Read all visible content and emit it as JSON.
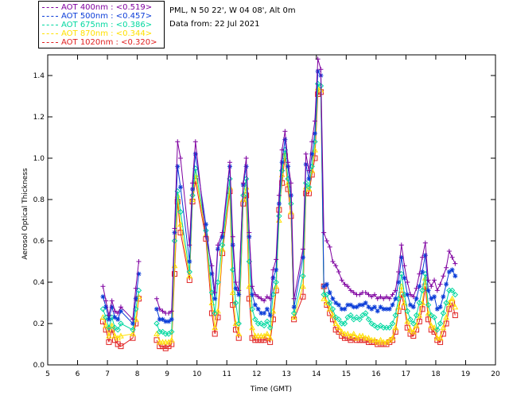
{
  "header": {
    "location": "PML, N 50 22', W 04 08', Alt 0m",
    "date": "Data from: 22 Jul 2021"
  },
  "legend": [
    {
      "label": "AOT  400nm : <0.519>",
      "color": "#7f00a0"
    },
    {
      "label": "AOT  500nm : <0.457>",
      "color": "#0a3cd8"
    },
    {
      "label": "AOT  675nm : <0.386>",
      "color": "#00d8a0"
    },
    {
      "label": "AOT  870nm : <0.344>",
      "color": "#ffe000"
    },
    {
      "label": "AOT 1020nm : <0.320>",
      "color": "#e02020"
    }
  ],
  "chart_data": {
    "type": "line",
    "xlabel": "Time (GMT)",
    "ylabel": "Aerosol Optical Thickness",
    "xlim": [
      5,
      20
    ],
    "ylim": [
      0.0,
      1.5
    ],
    "xticks": [
      5,
      6,
      7,
      8,
      9,
      10,
      11,
      12,
      13,
      14,
      15,
      16,
      17,
      18,
      19,
      20
    ],
    "yticks": [
      "0.0",
      "0.2",
      "0.4",
      "0.6",
      "0.8",
      "1.0",
      "1.2",
      "1.4"
    ],
    "x": [
      6.85,
      6.95,
      7.05,
      7.15,
      7.25,
      7.35,
      7.45,
      7.85,
      7.95,
      8.05,
      8.65,
      8.75,
      8.85,
      8.95,
      9.05,
      9.15,
      9.25,
      9.35,
      9.45,
      9.75,
      9.85,
      9.95,
      10.3,
      10.5,
      10.6,
      10.7,
      10.85,
      11.1,
      11.2,
      11.3,
      11.4,
      11.55,
      11.65,
      11.75,
      11.85,
      11.95,
      12.05,
      12.15,
      12.25,
      12.35,
      12.45,
      12.55,
      12.65,
      12.75,
      12.85,
      12.95,
      13.05,
      13.15,
      13.25,
      13.55,
      13.65,
      13.75,
      13.85,
      13.95,
      14.05,
      14.15,
      14.25,
      14.35,
      14.45,
      14.55,
      14.65,
      14.75,
      14.85,
      14.95,
      15.05,
      15.15,
      15.25,
      15.35,
      15.45,
      15.55,
      15.65,
      15.75,
      15.85,
      15.95,
      16.05,
      16.15,
      16.25,
      16.35,
      16.45,
      16.55,
      16.65,
      16.75,
      16.85,
      16.95,
      17.05,
      17.15,
      17.25,
      17.35,
      17.45,
      17.55,
      17.65,
      17.75,
      17.85,
      17.95,
      18.05,
      18.15,
      18.25,
      18.35,
      18.45,
      18.55,
      18.65
    ],
    "series": [
      {
        "name": "AOT  400nm",
        "color": "#7f00a0",
        "values": [
          0.38,
          0.31,
          0.24,
          0.31,
          0.26,
          0.25,
          0.28,
          0.22,
          0.37,
          0.5,
          0.32,
          0.27,
          0.26,
          0.25,
          0.25,
          0.26,
          0.66,
          1.08,
          1.0,
          0.58,
          0.88,
          1.08,
          0.62,
          0.48,
          0.35,
          0.58,
          0.64,
          0.98,
          0.62,
          0.4,
          0.36,
          0.88,
          1.0,
          0.64,
          0.38,
          0.34,
          0.33,
          0.32,
          0.31,
          0.33,
          0.32,
          0.46,
          0.51,
          0.82,
          1.04,
          1.13,
          0.98,
          0.88,
          0.32,
          0.56,
          1.02,
          0.94,
          1.08,
          1.18,
          1.48,
          1.43,
          0.64,
          0.6,
          0.57,
          0.5,
          0.48,
          0.45,
          0.41,
          0.39,
          0.38,
          0.36,
          0.35,
          0.34,
          0.34,
          0.35,
          0.35,
          0.34,
          0.33,
          0.34,
          0.32,
          0.33,
          0.32,
          0.33,
          0.32,
          0.34,
          0.36,
          0.45,
          0.58,
          0.48,
          0.4,
          0.34,
          0.33,
          0.37,
          0.44,
          0.52,
          0.59,
          0.41,
          0.38,
          0.41,
          0.36,
          0.39,
          0.43,
          0.47,
          0.55,
          0.52,
          0.49
        ]
      },
      {
        "name": "AOT  500nm",
        "color": "#0a3cd8",
        "values": [
          0.33,
          0.28,
          0.22,
          0.28,
          0.23,
          0.22,
          0.26,
          0.2,
          0.32,
          0.44,
          0.27,
          0.22,
          0.22,
          0.21,
          0.21,
          0.22,
          0.64,
          0.96,
          0.86,
          0.5,
          0.85,
          1.02,
          0.68,
          0.44,
          0.32,
          0.56,
          0.62,
          0.96,
          0.58,
          0.37,
          0.34,
          0.87,
          0.96,
          0.62,
          0.34,
          0.29,
          0.27,
          0.25,
          0.25,
          0.27,
          0.24,
          0.42,
          0.46,
          0.78,
          0.98,
          1.09,
          0.96,
          0.82,
          0.28,
          0.52,
          0.97,
          0.9,
          1.02,
          1.12,
          1.42,
          1.4,
          0.38,
          0.39,
          0.35,
          0.32,
          0.3,
          0.29,
          0.27,
          0.27,
          0.29,
          0.29,
          0.28,
          0.28,
          0.29,
          0.29,
          0.3,
          0.28,
          0.27,
          0.28,
          0.26,
          0.28,
          0.27,
          0.27,
          0.27,
          0.29,
          0.32,
          0.4,
          0.52,
          0.42,
          0.34,
          0.29,
          0.28,
          0.32,
          0.38,
          0.45,
          0.53,
          0.36,
          0.32,
          0.33,
          0.27,
          0.28,
          0.33,
          0.39,
          0.45,
          0.46,
          0.43
        ]
      },
      {
        "name": "AOT  675nm",
        "color": "#00d8a0",
        "values": [
          0.27,
          0.23,
          0.18,
          0.23,
          0.18,
          0.17,
          0.2,
          0.17,
          0.27,
          0.36,
          0.2,
          0.16,
          0.16,
          0.15,
          0.15,
          0.16,
          0.6,
          0.84,
          0.74,
          0.45,
          0.82,
          0.95,
          0.65,
          0.35,
          0.25,
          0.4,
          0.58,
          0.9,
          0.46,
          0.3,
          0.2,
          0.82,
          0.9,
          0.5,
          0.27,
          0.22,
          0.2,
          0.2,
          0.19,
          0.21,
          0.18,
          0.34,
          0.4,
          0.72,
          0.94,
          1.04,
          0.9,
          0.78,
          0.25,
          0.43,
          0.88,
          0.86,
          0.96,
          1.08,
          1.36,
          1.35,
          0.34,
          0.34,
          0.3,
          0.27,
          0.23,
          0.22,
          0.2,
          0.2,
          0.23,
          0.24,
          0.22,
          0.23,
          0.22,
          0.24,
          0.25,
          0.22,
          0.2,
          0.19,
          0.18,
          0.19,
          0.18,
          0.18,
          0.18,
          0.2,
          0.24,
          0.32,
          0.44,
          0.34,
          0.26,
          0.22,
          0.2,
          0.24,
          0.3,
          0.36,
          0.44,
          0.29,
          0.24,
          0.23,
          0.17,
          0.2,
          0.25,
          0.3,
          0.36,
          0.36,
          0.34
        ]
      },
      {
        "name": "AOT  870nm",
        "color": "#ffe000",
        "values": [
          0.23,
          0.19,
          0.14,
          0.19,
          0.14,
          0.13,
          0.14,
          0.15,
          0.22,
          0.33,
          0.15,
          0.11,
          0.11,
          0.11,
          0.11,
          0.12,
          0.48,
          0.82,
          0.68,
          0.43,
          0.8,
          0.92,
          0.63,
          0.3,
          0.18,
          0.26,
          0.56,
          0.86,
          0.35,
          0.2,
          0.15,
          0.8,
          0.86,
          0.38,
          0.18,
          0.14,
          0.14,
          0.14,
          0.14,
          0.15,
          0.13,
          0.26,
          0.38,
          0.7,
          0.92,
          1.02,
          0.88,
          0.74,
          0.23,
          0.38,
          0.86,
          0.85,
          0.94,
          1.04,
          1.34,
          1.33,
          0.32,
          0.3,
          0.27,
          0.24,
          0.2,
          0.18,
          0.16,
          0.15,
          0.15,
          0.14,
          0.15,
          0.13,
          0.14,
          0.14,
          0.13,
          0.13,
          0.12,
          0.12,
          0.11,
          0.12,
          0.11,
          0.11,
          0.12,
          0.13,
          0.18,
          0.28,
          0.38,
          0.3,
          0.21,
          0.17,
          0.16,
          0.19,
          0.24,
          0.3,
          0.42,
          0.25,
          0.19,
          0.18,
          0.13,
          0.13,
          0.18,
          0.23,
          0.3,
          0.32,
          0.28
        ]
      },
      {
        "name": "AOT 1020nm",
        "color": "#e02020",
        "values": [
          0.21,
          0.17,
          0.11,
          0.17,
          0.12,
          0.1,
          0.09,
          0.13,
          0.2,
          0.32,
          0.12,
          0.09,
          0.09,
          0.08,
          0.09,
          0.1,
          0.44,
          0.79,
          0.64,
          0.41,
          0.79,
          0.89,
          0.61,
          0.25,
          0.15,
          0.23,
          0.54,
          0.84,
          0.29,
          0.17,
          0.13,
          0.78,
          0.82,
          0.32,
          0.13,
          0.12,
          0.12,
          0.12,
          0.12,
          0.13,
          0.11,
          0.22,
          0.36,
          0.75,
          0.88,
          1.01,
          0.85,
          0.72,
          0.22,
          0.33,
          0.83,
          0.83,
          0.92,
          1.0,
          1.31,
          1.32,
          0.38,
          0.29,
          0.25,
          0.22,
          0.17,
          0.16,
          0.14,
          0.13,
          0.13,
          0.12,
          0.13,
          0.12,
          0.12,
          0.12,
          0.12,
          0.11,
          0.11,
          0.11,
          0.1,
          0.1,
          0.1,
          0.1,
          0.11,
          0.12,
          0.16,
          0.26,
          0.34,
          0.28,
          0.18,
          0.15,
          0.14,
          0.17,
          0.21,
          0.27,
          0.38,
          0.22,
          0.17,
          0.16,
          0.12,
          0.11,
          0.15,
          0.2,
          0.27,
          0.3,
          0.24
        ]
      }
    ]
  }
}
